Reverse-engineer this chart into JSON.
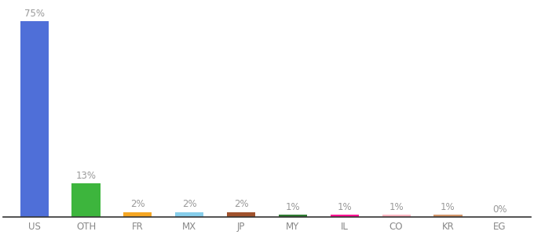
{
  "categories": [
    "US",
    "OTH",
    "FR",
    "MX",
    "JP",
    "MY",
    "IL",
    "CO",
    "KR",
    "EG"
  ],
  "values": [
    75,
    13,
    2,
    2,
    2,
    1,
    1,
    1,
    1,
    0
  ],
  "labels": [
    "75%",
    "13%",
    "2%",
    "2%",
    "2%",
    "1%",
    "1%",
    "1%",
    "1%",
    "0%"
  ],
  "bar_colors": [
    "#4F6FD8",
    "#3DB53D",
    "#F5A623",
    "#87CEEB",
    "#A0522D",
    "#2E7B32",
    "#FF1493",
    "#FFB6C1",
    "#D2956A",
    "#FFFFFF"
  ],
  "background_color": "#FFFFFF",
  "ylim": [
    0,
    82
  ],
  "label_fontsize": 8.5,
  "tick_fontsize": 8.5,
  "label_color": "#999999"
}
